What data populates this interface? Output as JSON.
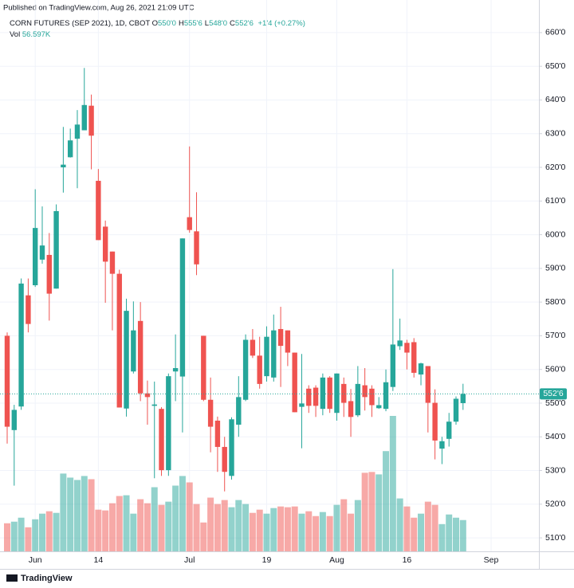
{
  "published": "Published on TradingView.com, Aug 26, 2021 21:09 UTC",
  "legend": {
    "symbol": "CORN FUTURES (SEP 2021), 1D, CBOT",
    "ohlc": [
      {
        "label": "O",
        "value": "550'0"
      },
      {
        "label": "H",
        "value": "555'6"
      },
      {
        "label": "L",
        "value": "548'0"
      },
      {
        "label": "C",
        "value": "552'6"
      }
    ],
    "change": "+1'4 (+0.27%)"
  },
  "footer": "TradingView",
  "chart_data": {
    "type": "candlestick",
    "categories": [
      null,
      null,
      null,
      null,
      "Jun",
      null,
      null,
      null,
      null,
      null,
      null,
      null,
      null,
      "14",
      null,
      null,
      null,
      null,
      null,
      null,
      null,
      null,
      null,
      null,
      null,
      null,
      "Jul",
      null,
      null,
      null,
      null,
      null,
      null,
      null,
      null,
      null,
      null,
      "19",
      null,
      null,
      null,
      null,
      null,
      null,
      null,
      null,
      null,
      "Aug",
      null,
      null,
      null,
      null,
      null,
      null,
      null,
      null,
      null,
      "16",
      null,
      null,
      null,
      null,
      null,
      null,
      null,
      null,
      null,
      null,
      null,
      "Sep"
    ],
    "open": [
      570,
      542,
      549,
      582,
      585,
      592.6,
      594,
      584,
      620,
      623,
      628.5,
      631,
      638.3,
      616,
      602.4,
      595,
      588.4,
      548.4,
      559.4,
      574.4,
      552.9,
      549.2,
      548.3,
      530.1,
      559.4,
      557.9,
      605.2,
      601,
      570,
      551,
      544.8,
      537,
      528.4,
      543.6,
      551,
      568.8,
      564.1,
      558,
      557.6,
      572,
      571.6,
      565,
      548.9,
      554.3,
      554.6,
      548.3,
      557.6,
      547.1,
      555.7,
      550.6,
      546.4,
      555.3,
      554.3,
      548.5,
      548.3,
      554.8,
      566.9,
      567.9,
      568.1,
      558.5,
      561,
      550.1,
      536.5,
      539.4,
      544.5,
      550,
      null,
      null,
      null,
      null
    ],
    "high": [
      571,
      549.5,
      587,
      587,
      613.5,
      608.4,
      600.5,
      609,
      632,
      631.5,
      637,
      649.5,
      641.6,
      619.5,
      604.2,
      595,
      589.6,
      581,
      580.2,
      580,
      556.7,
      556.4,
      548.8,
      558.8,
      570.4,
      598.9,
      626.2,
      612.6,
      570,
      557.6,
      546,
      540,
      545.8,
      558,
      570.4,
      572,
      569.7,
      572.8,
      576.3,
      578.6,
      571.6,
      565,
      564.6,
      555.3,
      555.3,
      558.8,
      558,
      558.8,
      557.6,
      554.2,
      561,
      560.4,
      555.3,
      551.8,
      560,
      589.8,
      575.1,
      568.8,
      569.3,
      562,
      561,
      554.1,
      540,
      547.1,
      552,
      555.75,
      null,
      null,
      null,
      null
    ],
    "low": [
      538,
      525.5,
      548,
      571,
      584.5,
      591.4,
      574.5,
      584,
      612.5,
      622.9,
      613.8,
      631,
      619.4,
      598.4,
      579.8,
      571.6,
      548.7,
      546,
      558.8,
      550.6,
      543.6,
      527.7,
      528.4,
      528.4,
      550.6,
      541.3,
      600.6,
      588,
      550.6,
      535.4,
      529.6,
      523.8,
      527.3,
      540,
      550.6,
      563.4,
      554.3,
      556.4,
      556.4,
      554.8,
      561,
      547.3,
      536.6,
      547.1,
      545.9,
      546.4,
      547.1,
      544.8,
      545.9,
      540,
      545.9,
      547.8,
      545.9,
      548.3,
      547.6,
      553.6,
      565.8,
      560,
      557.6,
      555.3,
      541.3,
      533.3,
      531.9,
      537.1,
      543.6,
      548,
      null,
      null,
      null,
      null
    ],
    "close": [
      543,
      548,
      585.5,
      573.5,
      602,
      596.8,
      582.5,
      607,
      620.8,
      628,
      632.7,
      638.5,
      629.4,
      598.4,
      592,
      588.4,
      548.7,
      577.4,
      571.6,
      552.9,
      551.8,
      549.6,
      530.1,
      558,
      560.4,
      598.9,
      601.4,
      591.2,
      551,
      543,
      537,
      529.6,
      545.2,
      551.8,
      568.8,
      564.1,
      555.7,
      569.7,
      571.6,
      567,
      565,
      547.3,
      549.9,
      549.2,
      549.2,
      557.6,
      548.3,
      558.8,
      550.1,
      545.9,
      555.7,
      551.8,
      549.4,
      549.4,
      556.2,
      567.4,
      568.6,
      565,
      559,
      561.8,
      550.1,
      538.9,
      538.7,
      544.5,
      551.3,
      552.75,
      null,
      null,
      null,
      null
    ],
    "volume": {
      "name": "Vol",
      "last_value_label": "56.597K",
      "values": [
        50.8,
        53.7,
        60.9,
        43.5,
        58,
        68.2,
        72.5,
        69.6,
        140.7,
        133.4,
        129.1,
        136.3,
        130.5,
        75.4,
        74,
        87,
        100.1,
        101.5,
        68.2,
        94.3,
        87,
        116,
        84.1,
        89.9,
        118.9,
        136.3,
        124.7,
        85.6,
        52.2,
        97.2,
        85.6,
        92.8,
        79.8,
        92.8,
        85.6,
        69.6,
        75.4,
        68.2,
        78.3,
        81.2,
        79.8,
        81.2,
        68.2,
        72.5,
        63.8,
        71.1,
        63.8,
        84.1,
        94.3,
        68.2,
        92.8,
        142.1,
        143.6,
        139.2,
        181.3,
        245,
        95.7,
        81.2,
        60.9,
        68.2,
        89.9,
        84.1,
        49.3,
        66.7,
        60.9,
        56.597,
        null,
        null,
        null,
        null
      ]
    },
    "last_price_label": "552'6",
    "up_color": "#26a69a",
    "down_color": "#ef5350",
    "ylim": [
      506,
      664
    ],
    "yticks": [
      {
        "value": 510,
        "label": "510'0"
      },
      {
        "value": 520,
        "label": "520'0"
      },
      {
        "value": 530,
        "label": "530'0"
      },
      {
        "value": 540,
        "label": "540'0"
      },
      {
        "value": 550,
        "label": "550'0"
      },
      {
        "value": 560,
        "label": "560'0"
      },
      {
        "value": 570,
        "label": "570'0"
      },
      {
        "value": 580,
        "label": "580'0"
      },
      {
        "value": 590,
        "label": "590'0"
      },
      {
        "value": 600,
        "label": "600'0"
      },
      {
        "value": 610,
        "label": "610'0"
      },
      {
        "value": 620,
        "label": "620'0"
      },
      {
        "value": 630,
        "label": "630'0"
      },
      {
        "value": 640,
        "label": "640'0"
      },
      {
        "value": 650,
        "label": "650'0"
      },
      {
        "value": 660,
        "label": "660'0"
      }
    ],
    "grid": true
  }
}
